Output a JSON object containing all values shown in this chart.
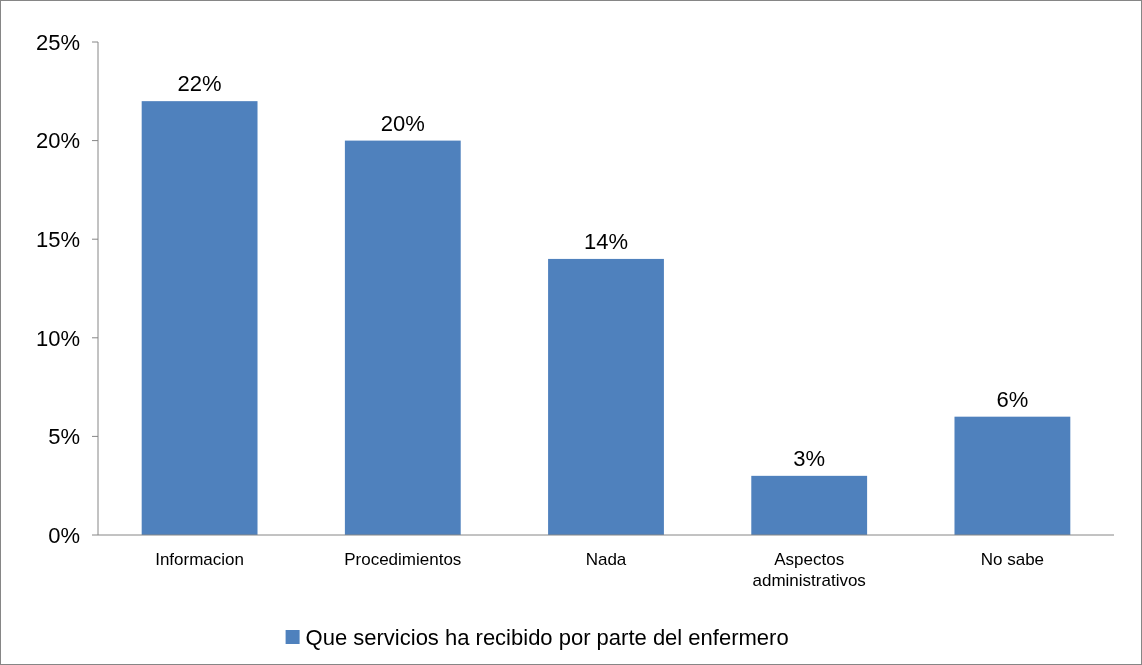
{
  "chart_data": {
    "type": "bar",
    "categories": [
      "Informacion",
      "Procedimientos",
      "Nada",
      "Aspectos administrativos",
      "No sabe"
    ],
    "series": [
      {
        "name": "Que servicios ha recibido por parte del enfermero",
        "color": "#4f81bd",
        "values": [
          22,
          20,
          14,
          3,
          6
        ],
        "value_labels": [
          "22%",
          "20%",
          "14%",
          "3%",
          "6%"
        ]
      }
    ],
    "ylim": [
      0,
      25
    ],
    "yticks": [
      {
        "value": 0,
        "label": "0%"
      },
      {
        "value": 5,
        "label": "5%"
      },
      {
        "value": 10,
        "label": "10%"
      },
      {
        "value": 15,
        "label": "15%"
      },
      {
        "value": 20,
        "label": "20%"
      },
      {
        "value": 25,
        "label": "25%"
      }
    ],
    "grid": false,
    "legend": "bottom"
  }
}
